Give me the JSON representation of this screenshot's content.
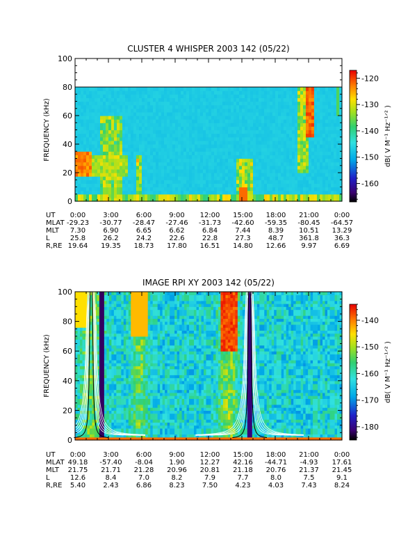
{
  "chart_data": [
    {
      "type": "heatmap",
      "title": "CLUSTER 4 WHISPER 2003 142 (05/22)",
      "ylabel": "FREQUENCY (kHz)",
      "yticks": [
        0,
        20,
        40,
        60,
        80,
        100
      ],
      "ylim": [
        0,
        100
      ],
      "data_ceiling_khz": 80,
      "xticks": [
        "0:00",
        "3:00",
        "6:00",
        "9:00",
        "12:00",
        "15:00",
        "18:00",
        "21:00",
        "0:00"
      ],
      "colorbar": {
        "label": "dB( V M⁻¹ Hz⁻¹ᐟ² )",
        "ticks": [
          -120,
          -130,
          -140,
          -150,
          -160
        ],
        "range": [
          -167,
          -117
        ],
        "placement": "right"
      },
      "ephemeris": [
        {
          "label": "UT",
          "values": [
            "0:00",
            "3:00",
            "6:00",
            "9:00",
            "12:00",
            "15:00",
            "18:00",
            "21:00",
            "0:00"
          ]
        },
        {
          "label": "MLAT",
          "values": [
            "-29.23",
            "-30.77",
            "-28.47",
            "-27.46",
            "-31.73",
            "-42.60",
            "-59.35",
            "-80.45",
            "-64.57"
          ]
        },
        {
          "label": "MLT",
          "values": [
            "7.30",
            "6.90",
            "6.65",
            "6.62",
            "6.84",
            "7.44",
            "8.39",
            "10.51",
            "13.29"
          ]
        },
        {
          "label": "L",
          "values": [
            "25.8",
            "26.2",
            "24.2",
            "22.6",
            "22.8",
            "27.3",
            "48.7",
            "361.8",
            "36.3"
          ]
        },
        {
          "label": "R,RE",
          "values": [
            "19.64",
            "19.35",
            "18.73",
            "17.80",
            "16.51",
            "14.80",
            "12.66",
            "9.97",
            "6.69"
          ]
        }
      ],
      "grid": false,
      "legend": "none"
    },
    {
      "type": "heatmap",
      "title": "IMAGE RPI XY 2003 142 (05/22)",
      "ylabel": "FREQUENCY (kHz)",
      "yticks": [
        0,
        20,
        40,
        60,
        80,
        100
      ],
      "ylim": [
        0,
        100
      ],
      "xticks": [
        "0:00",
        "3:00",
        "6:00",
        "9:00",
        "12:00",
        "15:00",
        "18:00",
        "21:00",
        "0:00"
      ],
      "colorbar": {
        "label": "dB( V M⁻¹ Hz⁻¹ᐟ² )",
        "ticks": [
          -140,
          -150,
          -160,
          -170,
          -180
        ],
        "range": [
          -185,
          -134
        ],
        "placement": "right"
      },
      "ephemeris": [
        {
          "label": "UT",
          "values": [
            "0:00",
            "3:00",
            "6:00",
            "9:00",
            "12:00",
            "15:00",
            "18:00",
            "21:00",
            "0:00"
          ]
        },
        {
          "label": "MLAT",
          "values": [
            "49.18",
            "-57.40",
            "-8.04",
            "1.90",
            "12.27",
            "42.16",
            "-44.71",
            "-4.93",
            "17.61"
          ]
        },
        {
          "label": "MLT",
          "values": [
            "21.75",
            "21.71",
            "21.28",
            "20.96",
            "20.81",
            "21.18",
            "20.76",
            "21.37",
            "21.45"
          ]
        },
        {
          "label": "L",
          "values": [
            "12.6",
            "8.4",
            "7.0",
            "8.2",
            "7.9",
            "7.7",
            "8.0",
            "7.5",
            "9.1"
          ]
        },
        {
          "label": "R,RE",
          "values": [
            "5.40",
            "2.43",
            "6.86",
            "8.23",
            "7.50",
            "4.23",
            "4.03",
            "7.43",
            "8.24"
          ]
        }
      ],
      "grid": false,
      "legend": "none"
    }
  ]
}
